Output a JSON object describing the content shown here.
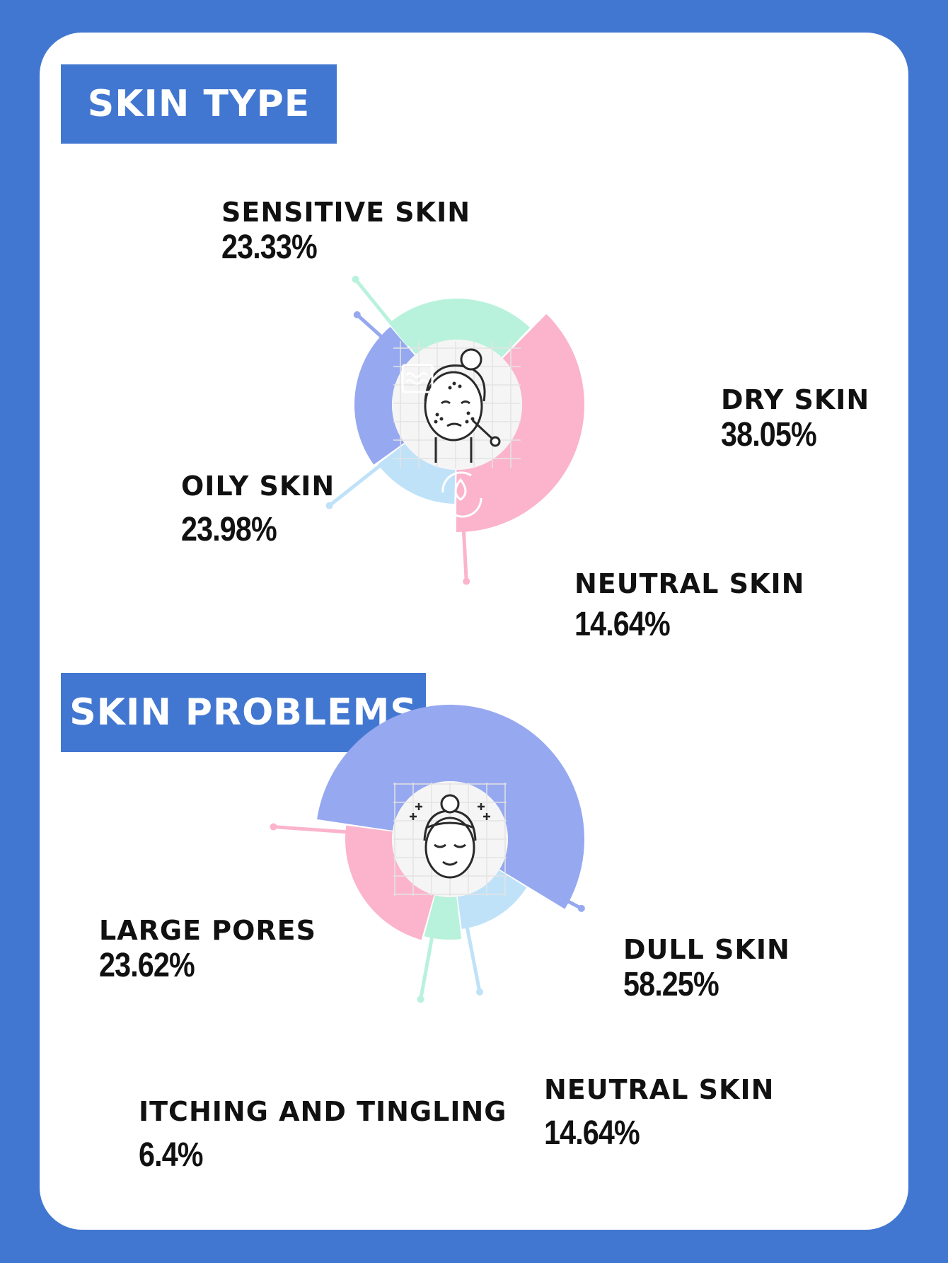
{
  "colors": {
    "background": "#4277d1",
    "card": "#ffffff",
    "pink": "#fbb4cc",
    "mint": "#b9f2dc",
    "lightblue": "#bfe2f8",
    "periwinkle": "#96a8f0",
    "center": "#f4f4f4"
  },
  "sections": {
    "skin_type": {
      "title": "SKIN TYPE"
    },
    "skin_problems": {
      "title": "SKIN PROBLEMS"
    }
  },
  "chart_data": [
    {
      "type": "pie",
      "title": "SKIN TYPE",
      "slices": [
        {
          "label": "SENSITIVE SKIN",
          "value": 23.33,
          "display": "23.33%",
          "color": "#b9f2dc",
          "icon": "water-surface-icon"
        },
        {
          "label": "DRY SKIN",
          "value": 38.05,
          "display": "38.05%",
          "color": "#fbb4cc",
          "icon": "no-drop-leaf-icon"
        },
        {
          "label": "OILY SKIN",
          "value": 23.98,
          "display": "23.98%",
          "color": "#96a8f0",
          "icon": "drop-cycle-icon"
        },
        {
          "label": "NEUTRAL SKIN",
          "value": 14.64,
          "display": "14.64%",
          "color": "#bfe2f8",
          "icon": "two-drops-icon"
        }
      ],
      "center_icon": "acne-face-icon"
    },
    {
      "type": "pie",
      "title": "SKIN PROBLEMS",
      "slices": [
        {
          "label": "LARGE PORES",
          "value": 23.62,
          "display": "23.62%",
          "color": "#fbb4cc"
        },
        {
          "label": "DULL SKIN",
          "value": 58.25,
          "display": "58.25%",
          "color": "#96a8f0"
        },
        {
          "label": "NEUTRAL SKIN",
          "value": 14.64,
          "display": "14.64%",
          "color": "#bfe2f8"
        },
        {
          "label": "ITCHING AND TINGLING",
          "value": 6.4,
          "display": "6.4%",
          "color": "#b9f2dc"
        }
      ],
      "center_icon": "glowing-face-icon"
    }
  ]
}
